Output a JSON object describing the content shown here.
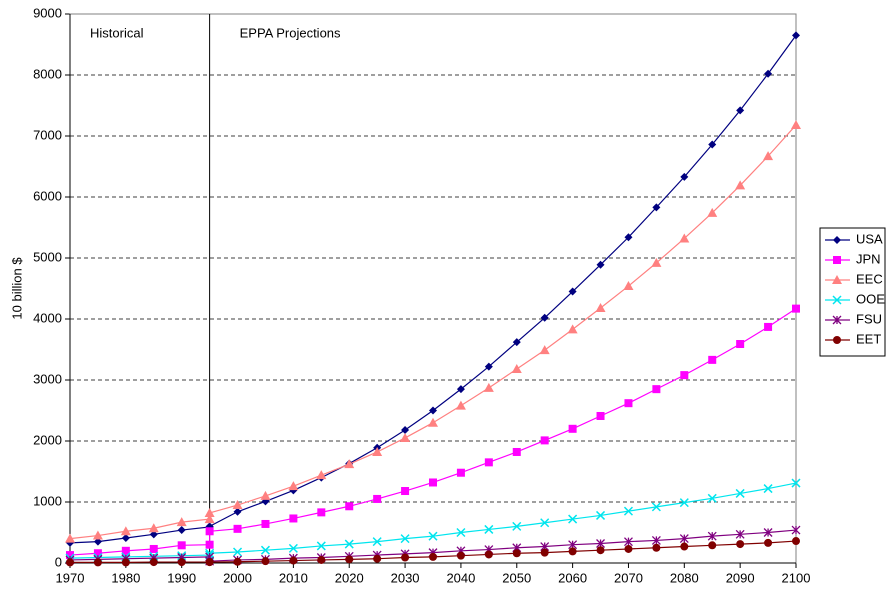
{
  "chart_data": {
    "type": "line",
    "ylabel": "10 billion $",
    "annotations": [
      "Historical",
      "EPPA Projections"
    ],
    "divider_x": 1995,
    "x": [
      1970,
      1975,
      1980,
      1985,
      1990,
      1995,
      1995,
      2000,
      2005,
      2010,
      2015,
      2020,
      2025,
      2030,
      2035,
      2040,
      2045,
      2050,
      2055,
      2060,
      2065,
      2070,
      2075,
      2080,
      2085,
      2090,
      2095,
      2100
    ],
    "series": [
      {
        "name": "USA",
        "color": "#000080",
        "marker": "diamond",
        "values": [
          330,
          350,
          410,
          470,
          540,
          590,
          600,
          840,
          1010,
          1190,
          1400,
          1630,
          1890,
          2180,
          2500,
          2850,
          3220,
          3620,
          4020,
          4450,
          4890,
          5340,
          5830,
          6330,
          6860,
          7420,
          8020,
          8650
        ]
      },
      {
        "name": "JPN",
        "color": "#ff00ff",
        "marker": "square",
        "values": [
          130,
          160,
          200,
          230,
          290,
          300,
          520,
          560,
          640,
          730,
          830,
          930,
          1050,
          1180,
          1320,
          1480,
          1650,
          1820,
          2010,
          2200,
          2410,
          2620,
          2850,
          3080,
          3330,
          3590,
          3870,
          4170
        ]
      },
      {
        "name": "EEC",
        "color": "#ff8080",
        "marker": "triangle",
        "values": [
          400,
          450,
          520,
          570,
          670,
          720,
          820,
          950,
          1100,
          1260,
          1440,
          1620,
          1820,
          2050,
          2300,
          2580,
          2870,
          3180,
          3490,
          3830,
          4180,
          4540,
          4920,
          5320,
          5740,
          6190,
          6670,
          7180
        ]
      },
      {
        "name": "OOE",
        "color": "#00e5ee",
        "marker": "x",
        "values": [
          80,
          90,
          100,
          110,
          120,
          130,
          160,
          180,
          210,
          240,
          280,
          310,
          350,
          400,
          440,
          500,
          550,
          600,
          660,
          720,
          780,
          850,
          920,
          990,
          1060,
          1140,
          1220,
          1310
        ]
      },
      {
        "name": "FSU",
        "color": "#800080",
        "marker": "star",
        "values": [
          50,
          60,
          70,
          80,
          90,
          100,
          30,
          50,
          60,
          80,
          90,
          110,
          130,
          150,
          170,
          200,
          220,
          250,
          270,
          300,
          320,
          350,
          370,
          400,
          440,
          470,
          500,
          540
        ]
      },
      {
        "name": "EET",
        "color": "#800000",
        "marker": "circle",
        "values": [
          10,
          10,
          10,
          15,
          15,
          15,
          15,
          20,
          30,
          40,
          50,
          60,
          70,
          90,
          100,
          120,
          140,
          160,
          170,
          190,
          210,
          230,
          250,
          270,
          290,
          310,
          330,
          360
        ]
      }
    ],
    "xlim": [
      1970,
      2100
    ],
    "xticks": [
      1970,
      1980,
      1990,
      2000,
      2010,
      2020,
      2030,
      2040,
      2050,
      2060,
      2070,
      2080,
      2090,
      2100
    ],
    "ylim": [
      0,
      9000
    ],
    "yticks": [
      0,
      1000,
      2000,
      3000,
      4000,
      5000,
      6000,
      7000,
      8000,
      9000
    ],
    "grid": true,
    "legend": "right"
  }
}
